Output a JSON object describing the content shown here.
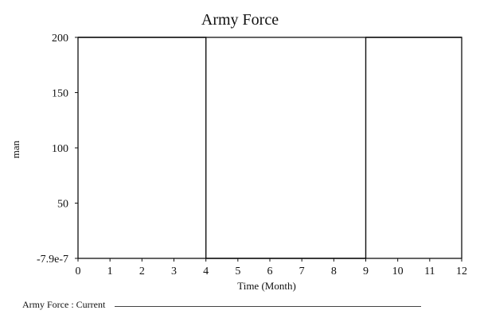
{
  "chart_data": {
    "type": "line",
    "title": "Army Force",
    "xlabel": "Time (Month)",
    "ylabel": "man",
    "x_ticks": [
      0,
      1,
      2,
      3,
      4,
      5,
      6,
      7,
      8,
      9,
      10,
      11,
      12
    ],
    "y_ticks": [
      {
        "value": -7.9e-07,
        "label": "-7.9e-7"
      },
      {
        "value": 50,
        "label": "50"
      },
      {
        "value": 100,
        "label": "100"
      },
      {
        "value": 150,
        "label": "150"
      },
      {
        "value": 200,
        "label": "200"
      }
    ],
    "xlim": [
      0,
      12
    ],
    "ylim": [
      -7.9e-07,
      200
    ],
    "grid": false,
    "legend_position": "bottom-left",
    "series": [
      {
        "name": "Army Force : Current",
        "color": "#111111",
        "x": [
          0,
          4,
          4,
          9,
          9,
          12
        ],
        "y": [
          200,
          200,
          -7.9e-07,
          -7.9e-07,
          200,
          200
        ]
      }
    ]
  }
}
